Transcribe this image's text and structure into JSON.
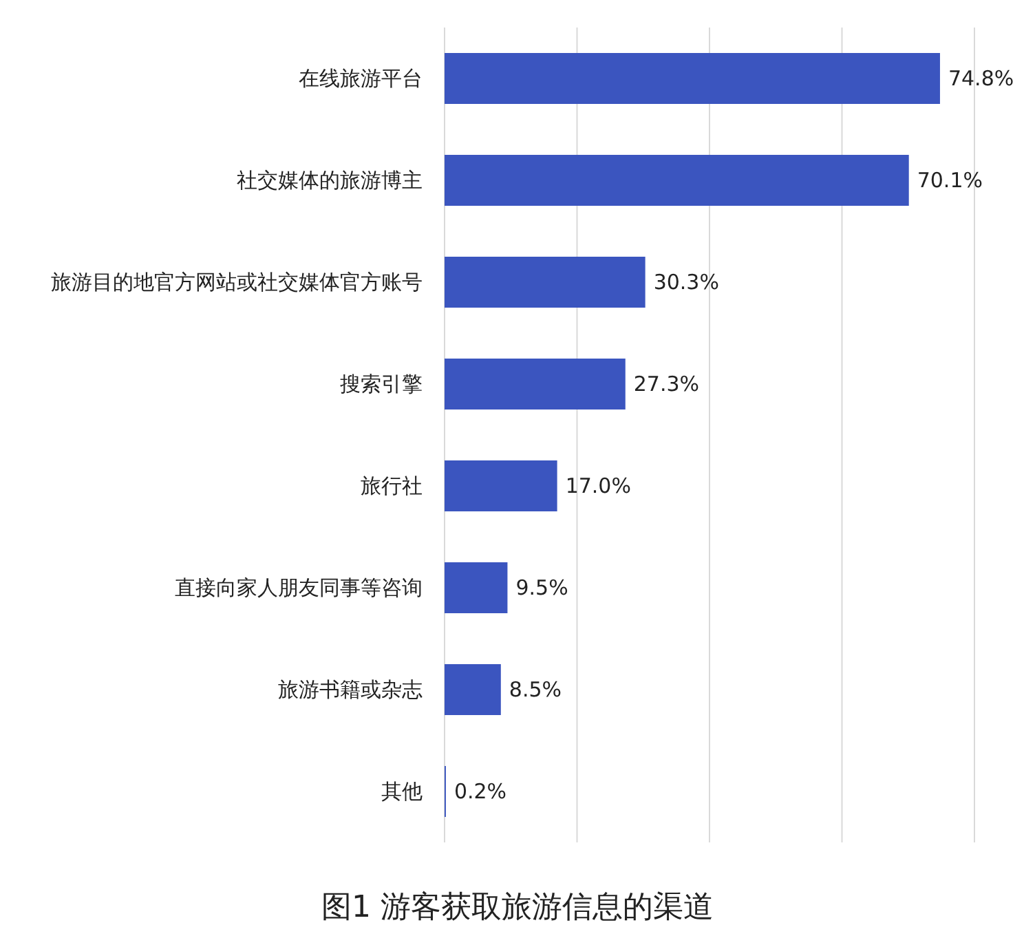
{
  "chart_data": {
    "type": "bar",
    "orientation": "horizontal",
    "title": "图1  游客获取旅游信息的渠道",
    "categories": [
      "在线旅游平台",
      "社交媒体的旅游博主",
      "旅游目的地官方网站或社交媒体官方账号",
      "搜索引擎",
      "旅行社",
      "直接向家人朋友同事等咨询",
      "旅游书籍或杂志",
      "其他"
    ],
    "values": [
      74.8,
      70.1,
      30.3,
      27.3,
      17.0,
      9.5,
      8.5,
      0.2
    ],
    "value_labels": [
      "74.8%",
      "70.1%",
      "30.3%",
      "27.3%",
      "17.0%",
      "9.5%",
      "8.5%",
      "0.2%"
    ],
    "color": "#3b55bf",
    "xlim": [
      0,
      80
    ],
    "xticks": [
      {
        "value": 0,
        "label": null
      },
      {
        "value": 20,
        "label": null
      },
      {
        "value": 40,
        "label": null
      },
      {
        "value": 60,
        "label": null
      },
      {
        "value": 80,
        "label": null
      }
    ],
    "grid": "x"
  }
}
